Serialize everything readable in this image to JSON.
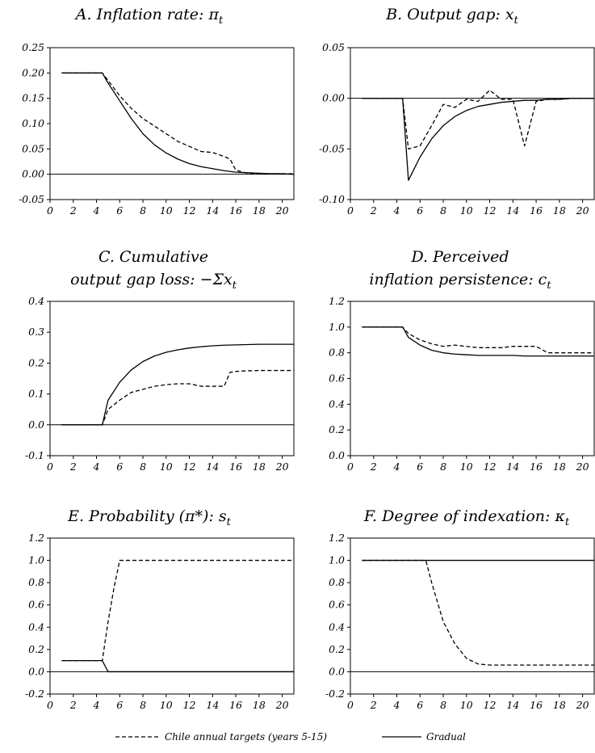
{
  "chart_data": [
    {
      "type": "line",
      "title_lines": [
        "A. Inflation rate: π",
        ""
      ],
      "title_subscript": "t",
      "xlim": [
        0,
        21
      ],
      "xticks": [
        0,
        2,
        4,
        6,
        8,
        10,
        12,
        14,
        16,
        18,
        20
      ],
      "ylim": [
        -0.05,
        0.25
      ],
      "yticks": [
        -0.05,
        0.0,
        0.05,
        0.1,
        0.15,
        0.2,
        0.25
      ],
      "ytick_labels": [
        "-0.05",
        "0.00",
        "0.05",
        "0.10",
        "0.15",
        "0.20",
        "0.25"
      ],
      "zero_line": true,
      "series": [
        {
          "key": "chile",
          "style": "dashed",
          "x": [
            1,
            2,
            3,
            4,
            4.5,
            5,
            6,
            7,
            8,
            9,
            10,
            11,
            12,
            13,
            14,
            15,
            15.5,
            16,
            17,
            18,
            19,
            20,
            21
          ],
          "y": [
            0.2,
            0.2,
            0.2,
            0.2,
            0.2,
            0.185,
            0.155,
            0.13,
            0.11,
            0.095,
            0.08,
            0.065,
            0.055,
            0.045,
            0.043,
            0.035,
            0.03,
            0.008,
            0.002,
            0.001,
            0.001,
            0.001,
            0.001
          ]
        },
        {
          "key": "gradual",
          "style": "solid",
          "x": [
            1,
            2,
            3,
            4,
            4.5,
            5,
            6,
            7,
            8,
            9,
            10,
            11,
            12,
            13,
            14,
            15,
            16,
            17,
            18,
            19,
            20,
            21
          ],
          "y": [
            0.2,
            0.2,
            0.2,
            0.2,
            0.2,
            0.18,
            0.145,
            0.11,
            0.08,
            0.058,
            0.042,
            0.03,
            0.021,
            0.015,
            0.011,
            0.007,
            0.004,
            0.003,
            0.002,
            0.001,
            0.001,
            0.0
          ]
        }
      ]
    },
    {
      "type": "line",
      "title_lines": [
        "B. Output gap: x",
        ""
      ],
      "title_subscript": "t",
      "xlim": [
        0,
        21
      ],
      "xticks": [
        0,
        2,
        4,
        6,
        8,
        10,
        12,
        14,
        16,
        18,
        20
      ],
      "ylim": [
        -0.1,
        0.05
      ],
      "yticks": [
        -0.1,
        -0.05,
        0.0,
        0.05
      ],
      "ytick_labels": [
        "-0.10",
        "-0.05",
        "0.00",
        "0.05"
      ],
      "zero_line": true,
      "series": [
        {
          "key": "chile",
          "style": "dashed",
          "x": [
            1,
            2,
            3,
            4,
            4.5,
            5,
            6,
            7,
            8,
            9,
            10,
            11,
            12,
            13,
            14,
            15,
            16,
            17,
            18,
            19,
            20,
            21
          ],
          "y": [
            0.0,
            0.0,
            0.0,
            0.0,
            0.0,
            -0.05,
            -0.047,
            -0.027,
            -0.006,
            -0.009,
            -0.001,
            -0.003,
            0.008,
            -0.001,
            -0.001,
            -0.047,
            -0.003,
            -0.001,
            -0.001,
            0.0,
            0.0,
            0.0
          ]
        },
        {
          "key": "gradual",
          "style": "solid",
          "x": [
            1,
            2,
            3,
            4,
            4.5,
            5,
            6,
            7,
            8,
            9,
            10,
            11,
            12,
            13,
            14,
            15,
            16,
            17,
            18,
            19,
            20,
            21
          ],
          "y": [
            0.0,
            0.0,
            0.0,
            0.0,
            0.0,
            -0.081,
            -0.058,
            -0.04,
            -0.027,
            -0.018,
            -0.012,
            -0.008,
            -0.006,
            -0.004,
            -0.003,
            -0.002,
            -0.002,
            -0.001,
            -0.001,
            0.0,
            0.0,
            0.0
          ]
        }
      ]
    },
    {
      "type": "line",
      "title_lines": [
        "C. Cumulative",
        "output gap loss: −Σx"
      ],
      "title_subscript": "t",
      "xlim": [
        0,
        21
      ],
      "xticks": [
        0,
        2,
        4,
        6,
        8,
        10,
        12,
        14,
        16,
        18,
        20
      ],
      "ylim": [
        -0.1,
        0.4
      ],
      "yticks": [
        -0.1,
        0.0,
        0.1,
        0.2,
        0.3,
        0.4
      ],
      "ytick_labels": [
        "-0.1",
        "0.0",
        "0.1",
        "0.2",
        "0.3",
        "0.4"
      ],
      "zero_line": true,
      "series": [
        {
          "key": "chile",
          "style": "dashed",
          "x": [
            1,
            2,
            3,
            4,
            4.5,
            5,
            6,
            7,
            8,
            9,
            10,
            11,
            12,
            13,
            14,
            15,
            15.5,
            16,
            17,
            18,
            19,
            20,
            21
          ],
          "y": [
            0.0,
            0.0,
            0.0,
            0.0,
            0.0,
            0.05,
            0.08,
            0.105,
            0.115,
            0.125,
            0.13,
            0.133,
            0.133,
            0.125,
            0.125,
            0.125,
            0.17,
            0.173,
            0.175,
            0.176,
            0.176,
            0.176,
            0.176
          ]
        },
        {
          "key": "gradual",
          "style": "solid",
          "x": [
            1,
            2,
            3,
            4,
            4.5,
            5,
            6,
            7,
            8,
            9,
            10,
            11,
            12,
            13,
            14,
            15,
            16,
            17,
            18,
            19,
            20,
            21
          ],
          "y": [
            0.0,
            0.0,
            0.0,
            0.0,
            0.0,
            0.08,
            0.138,
            0.178,
            0.205,
            0.223,
            0.235,
            0.243,
            0.249,
            0.253,
            0.256,
            0.258,
            0.259,
            0.26,
            0.261,
            0.261,
            0.261,
            0.261
          ]
        }
      ]
    },
    {
      "type": "line",
      "title_lines": [
        "D. Perceived",
        "inflation persistence: c"
      ],
      "title_subscript": "t",
      "xlim": [
        0,
        21
      ],
      "xticks": [
        0,
        2,
        4,
        6,
        8,
        10,
        12,
        14,
        16,
        18,
        20
      ],
      "ylim": [
        0.0,
        1.2
      ],
      "yticks": [
        0.0,
        0.2,
        0.4,
        0.6,
        0.8,
        1.0,
        1.2
      ],
      "ytick_labels": [
        "0.0",
        "0.2",
        "0.4",
        "0.6",
        "0.8",
        "1.0",
        "1.2"
      ],
      "zero_line": false,
      "series": [
        {
          "key": "chile",
          "style": "dashed",
          "x": [
            1,
            2,
            3,
            4,
            4.5,
            5,
            6,
            7,
            8,
            9,
            10,
            11,
            12,
            13,
            14,
            15,
            16,
            17,
            18,
            19,
            20,
            21
          ],
          "y": [
            1.0,
            1.0,
            1.0,
            1.0,
            1.0,
            0.95,
            0.9,
            0.87,
            0.85,
            0.86,
            0.85,
            0.84,
            0.84,
            0.84,
            0.85,
            0.85,
            0.85,
            0.8,
            0.8,
            0.8,
            0.8,
            0.8
          ]
        },
        {
          "key": "gradual",
          "style": "solid",
          "x": [
            1,
            2,
            3,
            4,
            4.5,
            5,
            6,
            7,
            8,
            9,
            10,
            11,
            12,
            13,
            14,
            15,
            16,
            17,
            18,
            19,
            20,
            21
          ],
          "y": [
            1.0,
            1.0,
            1.0,
            1.0,
            1.0,
            0.92,
            0.86,
            0.82,
            0.8,
            0.79,
            0.785,
            0.78,
            0.78,
            0.78,
            0.78,
            0.775,
            0.775,
            0.775,
            0.775,
            0.775,
            0.775,
            0.775
          ]
        }
      ]
    },
    {
      "type": "line",
      "title_lines": [
        "E. Probability (π*): s",
        ""
      ],
      "title_subscript": "t",
      "xlim": [
        0,
        21
      ],
      "xticks": [
        0,
        2,
        4,
        6,
        8,
        10,
        12,
        14,
        16,
        18,
        20
      ],
      "ylim": [
        -0.2,
        1.2
      ],
      "yticks": [
        -0.2,
        0.0,
        0.2,
        0.4,
        0.6,
        0.8,
        1.0,
        1.2
      ],
      "ytick_labels": [
        "-0.2",
        "0.0",
        "0.2",
        "0.4",
        "0.6",
        "0.8",
        "1.0",
        "1.2"
      ],
      "zero_line": true,
      "series": [
        {
          "key": "chile",
          "style": "dashed",
          "x": [
            1,
            2,
            3,
            4,
            4.5,
            5,
            5.5,
            6,
            7,
            8,
            9,
            10,
            11,
            12,
            13,
            14,
            15,
            16,
            17,
            18,
            19,
            20,
            21
          ],
          "y": [
            0.1,
            0.1,
            0.1,
            0.1,
            0.1,
            0.45,
            0.75,
            1.0,
            1.0,
            1.0,
            1.0,
            1.0,
            1.0,
            1.0,
            1.0,
            1.0,
            1.0,
            1.0,
            1.0,
            1.0,
            1.0,
            1.0,
            1.0
          ]
        },
        {
          "key": "gradual",
          "style": "solid",
          "x": [
            1,
            2,
            3,
            4,
            4.5,
            5,
            6,
            7,
            8,
            9,
            10,
            11,
            12,
            13,
            14,
            15,
            16,
            17,
            18,
            19,
            20,
            21
          ],
          "y": [
            0.1,
            0.1,
            0.1,
            0.1,
            0.1,
            0.0,
            0.0,
            0.0,
            0.0,
            0.0,
            0.0,
            0.0,
            0.0,
            0.0,
            0.0,
            0.0,
            0.0,
            0.0,
            0.0,
            0.0,
            0.0,
            0.0
          ]
        }
      ]
    },
    {
      "type": "line",
      "title_lines": [
        "F. Degree of indexation: κ",
        ""
      ],
      "title_subscript": "t",
      "xlim": [
        0,
        21
      ],
      "xticks": [
        0,
        2,
        4,
        6,
        8,
        10,
        12,
        14,
        16,
        18,
        20
      ],
      "ylim": [
        -0.2,
        1.2
      ],
      "yticks": [
        -0.2,
        0.0,
        0.2,
        0.4,
        0.6,
        0.8,
        1.0,
        1.2
      ],
      "ytick_labels": [
        "-0.2",
        "0.0",
        "0.2",
        "0.4",
        "0.6",
        "0.8",
        "1.0",
        "1.2"
      ],
      "zero_line": true,
      "series": [
        {
          "key": "chile",
          "style": "dashed",
          "x": [
            1,
            2,
            3,
            4,
            5,
            6,
            6.5,
            7,
            8,
            9,
            10,
            11,
            12,
            13,
            14,
            15,
            16,
            17,
            18,
            19,
            20,
            21
          ],
          "y": [
            1.0,
            1.0,
            1.0,
            1.0,
            1.0,
            1.0,
            1.0,
            0.8,
            0.45,
            0.25,
            0.12,
            0.07,
            0.06,
            0.06,
            0.06,
            0.06,
            0.06,
            0.06,
            0.06,
            0.06,
            0.06,
            0.06
          ]
        },
        {
          "key": "gradual",
          "style": "solid",
          "x": [
            1,
            2,
            3,
            4,
            5,
            6,
            7,
            8,
            9,
            10,
            11,
            12,
            13,
            14,
            15,
            16,
            17,
            18,
            19,
            20,
            21
          ],
          "y": [
            1.0,
            1.0,
            1.0,
            1.0,
            1.0,
            1.0,
            1.0,
            1.0,
            1.0,
            1.0,
            1.0,
            1.0,
            1.0,
            1.0,
            1.0,
            1.0,
            1.0,
            1.0,
            1.0,
            1.0,
            1.0
          ]
        }
      ]
    }
  ],
  "legend": {
    "position": "bottom-center",
    "items": [
      {
        "key": "chile",
        "label": "Chile annual targets (years 5-15)",
        "style": "dashed"
      },
      {
        "key": "gradual",
        "label": "Gradual",
        "style": "solid"
      }
    ]
  }
}
